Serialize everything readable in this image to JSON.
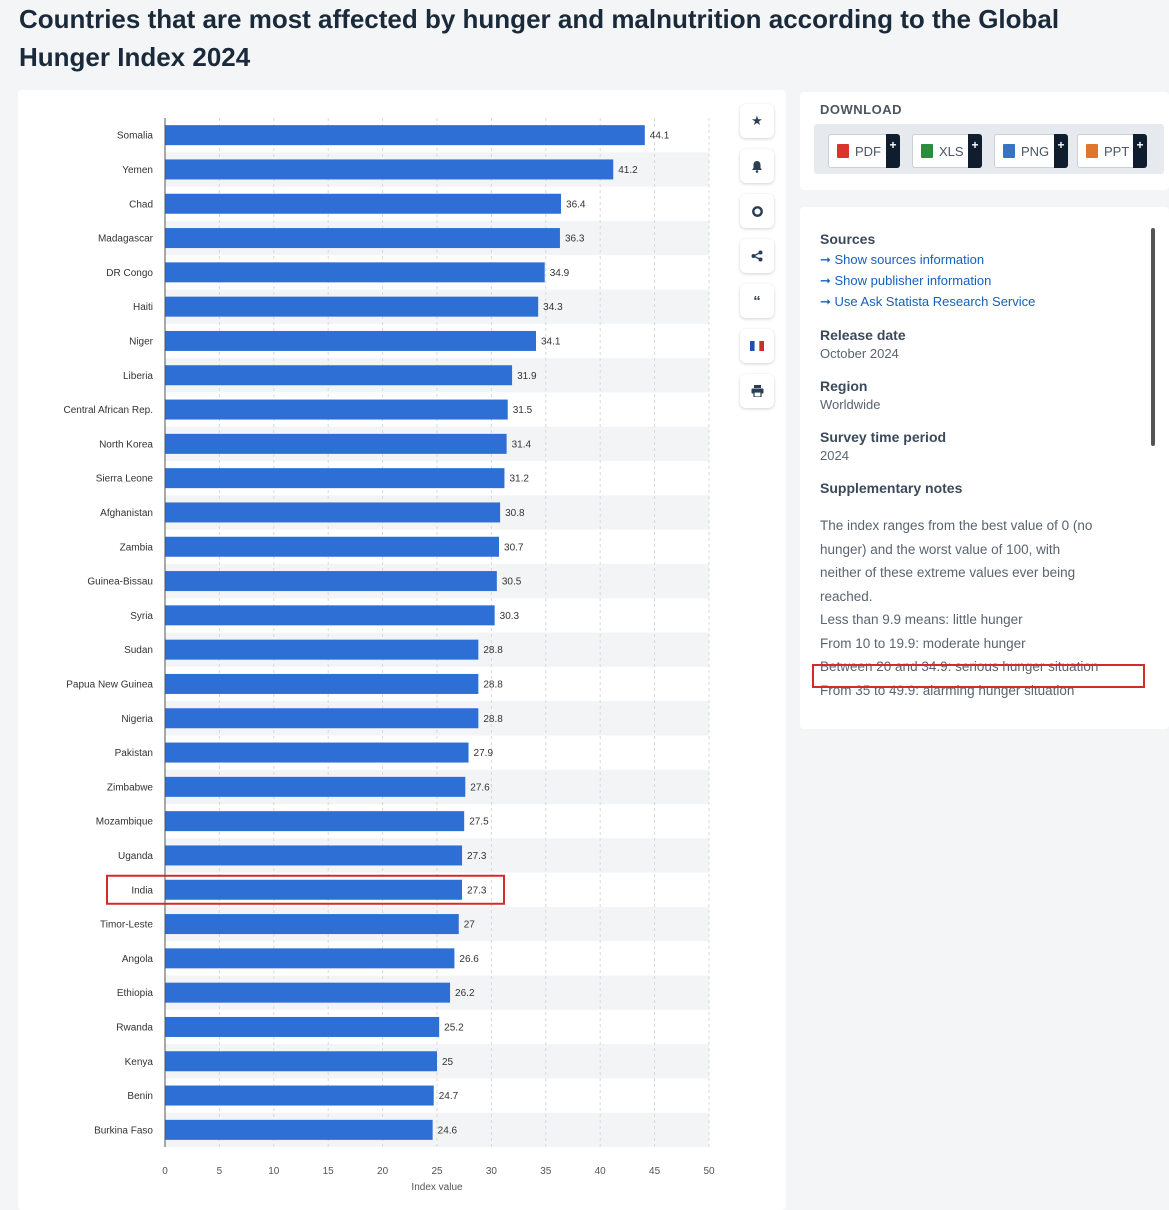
{
  "page": {
    "title": "Countries that are most affected by hunger and malnutrition according to the Global Hunger Index 2024"
  },
  "toolbar": {
    "icons": [
      "star-icon",
      "bell-icon",
      "gear-icon",
      "share-icon",
      "quote-icon",
      "flag-icon",
      "print-icon"
    ]
  },
  "download": {
    "title": "DOWNLOAD",
    "buttons": [
      {
        "label": "PDF",
        "color": "#d9342b"
      },
      {
        "label": "XLS",
        "color": "#2e8b3e"
      },
      {
        "label": "PNG",
        "color": "#3a73c4"
      },
      {
        "label": "PPT",
        "color": "#e0762b"
      }
    ],
    "plus": "+"
  },
  "info": {
    "sources_heading": "Sources",
    "links": [
      "Show sources information",
      "Show publisher information",
      "Use Ask Statista Research Service"
    ],
    "release_heading": "Release date",
    "release_value": "October 2024",
    "region_heading": "Region",
    "region_value": "Worldwide",
    "survey_heading": "Survey time period",
    "survey_value": "2024",
    "notes_heading": "Supplementary notes",
    "notes": [
      "The index ranges from the best value of 0 (no",
      "hunger) and the worst value of 100, with",
      "neither of these extreme values ever being",
      "reached.",
      "Less than 9.9 means: little hunger",
      "From 10 to 19.9: moderate hunger",
      "Between 20 and 34.9: serious hunger situation",
      "From 35 to 49.9: alarming hunger situation"
    ]
  },
  "chart_data": {
    "type": "bar",
    "orientation": "horizontal",
    "title": "",
    "xlabel": "Index value",
    "ylabel": "",
    "xlim": [
      0,
      50
    ],
    "ticks": [
      0,
      5,
      10,
      15,
      20,
      25,
      30,
      35,
      40,
      45,
      50
    ],
    "bar_color": "#2e6fd6",
    "highlight_category": "India",
    "highlight_color": "#d42a2a",
    "categories": [
      "Somalia",
      "Yemen",
      "Chad",
      "Madagascar",
      "DR Congo",
      "Haiti",
      "Niger",
      "Liberia",
      "Central African Rep.",
      "North Korea",
      "Sierra Leone",
      "Afghanistan",
      "Zambia",
      "Guinea-Bissau",
      "Syria",
      "Sudan",
      "Papua New Guinea",
      "Nigeria",
      "Pakistan",
      "Zimbabwe",
      "Mozambique",
      "Uganda",
      "India",
      "Timor-Leste",
      "Angola",
      "Ethiopia",
      "Rwanda",
      "Kenya",
      "Benin",
      "Burkina Faso"
    ],
    "values": [
      44.1,
      41.2,
      36.4,
      36.3,
      34.9,
      34.3,
      34.1,
      31.9,
      31.5,
      31.4,
      31.2,
      30.8,
      30.7,
      30.5,
      30.3,
      28.8,
      28.8,
      28.8,
      27.9,
      27.6,
      27.5,
      27.3,
      27.3,
      27,
      26.6,
      26.2,
      25.2,
      25,
      24.7,
      24.6
    ]
  }
}
